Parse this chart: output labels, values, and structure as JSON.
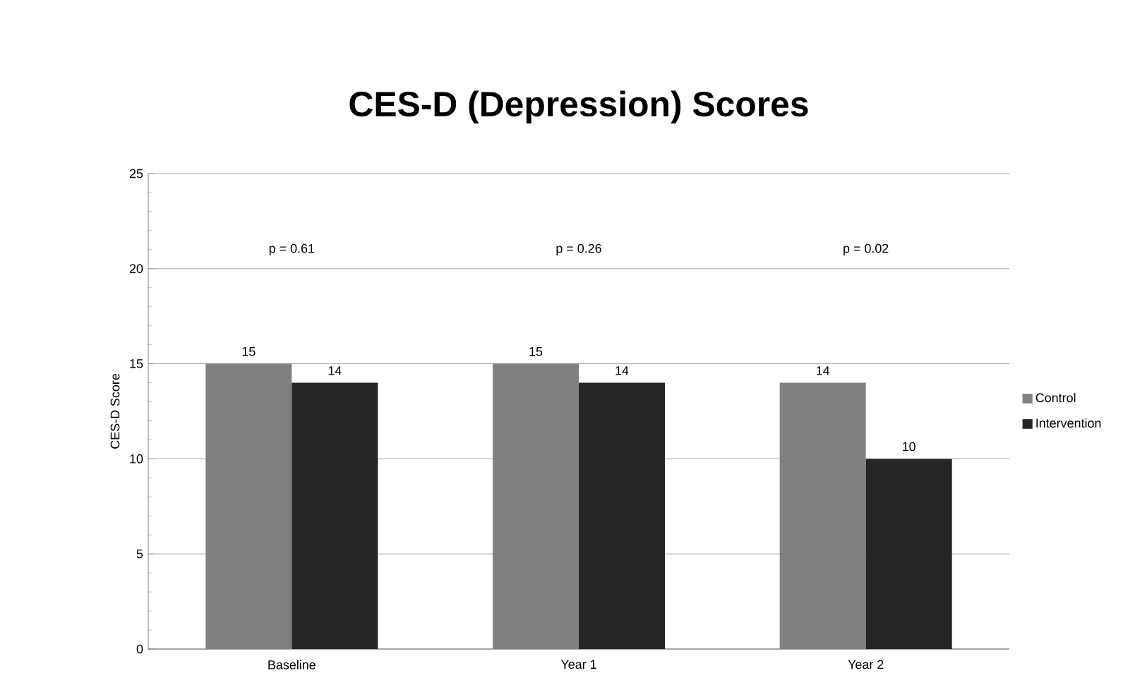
{
  "chart_data": {
    "type": "bar",
    "title": "CES-D (Depression) Scores",
    "ylabel": "CES-D Score",
    "categories": [
      "Baseline",
      "Year 1",
      "Year 2"
    ],
    "series": [
      {
        "name": "Control",
        "color": "#808080",
        "values": [
          15,
          15,
          14
        ]
      },
      {
        "name": "Intervention",
        "color": "#262626",
        "values": [
          14,
          14,
          10
        ]
      }
    ],
    "ylim": [
      0,
      25
    ],
    "yticks": [
      0,
      5,
      10,
      15,
      20,
      25
    ],
    "grid": "y",
    "legend": "right",
    "data_labels": true,
    "annotations": [
      "p = 0.61",
      "p = 0.26",
      "p = 0.02"
    ]
  }
}
